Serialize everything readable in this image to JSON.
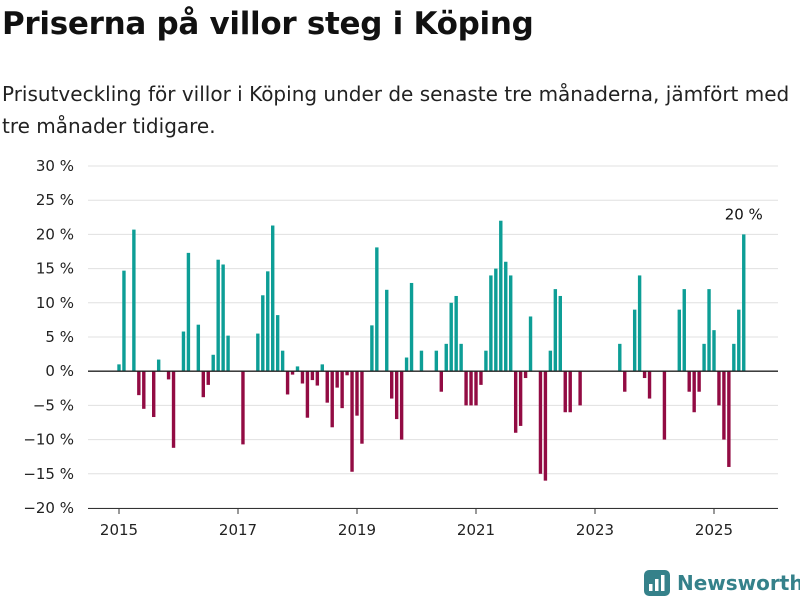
{
  "header": {
    "title": "Priserna på villor steg i Köping",
    "subtitle": "Prisutveckling för villor i Köping under de senaste tre månaderna, jämfört med tre månader tidigare."
  },
  "brand": {
    "name": "Newsworthy",
    "icon": "newsworthy-logo-icon",
    "color": "#35818a"
  },
  "colors": {
    "positive": "#0d9e96",
    "negative": "#920b43",
    "grid": "#e0e0e0",
    "zero_line": "#222222"
  },
  "chart_data": {
    "type": "bar",
    "title": "",
    "xlabel": "",
    "ylabel": "",
    "ylim": [
      -20,
      30
    ],
    "y_ticks": [
      -20,
      -15,
      -10,
      -5,
      0,
      5,
      10,
      15,
      20,
      25,
      30
    ],
    "y_tick_labels": [
      "−20 %",
      "−15 %",
      "−10 %",
      "−5 %",
      "0 %",
      "5 %",
      "10 %",
      "15 %",
      "20 %",
      "25 %",
      "30 %"
    ],
    "x_ticks": [
      2015,
      2017,
      2019,
      2021,
      2023,
      2025
    ],
    "x_tick_labels": [
      "2015",
      "2017",
      "2019",
      "2021",
      "2023",
      "2025"
    ],
    "grid": true,
    "annotation": {
      "text": "20 %",
      "month": "2025-07"
    },
    "series": [
      {
        "values": [
          [
            "2015-01",
            1
          ],
          [
            "2015-02",
            14.7
          ],
          [
            "2015-03",
            0
          ],
          [
            "2015-04",
            20.7
          ],
          [
            "2015-05",
            -3.5
          ],
          [
            "2015-06",
            -5.5
          ],
          [
            "2015-07",
            0
          ],
          [
            "2015-08",
            -6.7
          ],
          [
            "2015-09",
            1.7
          ],
          [
            "2015-10",
            0
          ],
          [
            "2015-11",
            -1.2
          ],
          [
            "2015-12",
            -11.2
          ],
          [
            "2016-01",
            0
          ],
          [
            "2016-02",
            5.8
          ],
          [
            "2016-03",
            17.3
          ],
          [
            "2016-04",
            0
          ],
          [
            "2016-05",
            6.8
          ],
          [
            "2016-06",
            -3.8
          ],
          [
            "2016-07",
            -2
          ],
          [
            "2016-08",
            2.4
          ],
          [
            "2016-09",
            16.3
          ],
          [
            "2016-10",
            15.6
          ],
          [
            "2016-11",
            5.2
          ],
          [
            "2016-12",
            0
          ],
          [
            "2017-01",
            0
          ],
          [
            "2017-02",
            -10.7
          ],
          [
            "2017-03",
            0
          ],
          [
            "2017-04",
            0
          ],
          [
            "2017-05",
            5.5
          ],
          [
            "2017-06",
            11.1
          ],
          [
            "2017-07",
            14.6
          ],
          [
            "2017-08",
            21.3
          ],
          [
            "2017-09",
            8.2
          ],
          [
            "2017-10",
            3
          ],
          [
            "2017-11",
            -3.4
          ],
          [
            "2017-12",
            -0.5
          ],
          [
            "2018-01",
            0.7
          ],
          [
            "2018-02",
            -1.8
          ],
          [
            "2018-03",
            -6.8
          ],
          [
            "2018-04",
            -1.3
          ],
          [
            "2018-05",
            -2.1
          ],
          [
            "2018-06",
            1
          ],
          [
            "2018-07",
            -4.6
          ],
          [
            "2018-08",
            -8.2
          ],
          [
            "2018-09",
            -2.4
          ],
          [
            "2018-10",
            -5.4
          ],
          [
            "2018-11",
            -0.6
          ],
          [
            "2018-12",
            -14.7
          ],
          [
            "2019-01",
            -6.5
          ],
          [
            "2019-02",
            -10.6
          ],
          [
            "2019-03",
            0
          ],
          [
            "2019-04",
            6.7
          ],
          [
            "2019-05",
            18.1
          ],
          [
            "2019-06",
            0
          ],
          [
            "2019-07",
            11.9
          ],
          [
            "2019-08",
            -4
          ],
          [
            "2019-09",
            -7
          ],
          [
            "2019-10",
            -10
          ],
          [
            "2019-11",
            2
          ],
          [
            "2019-12",
            12.9
          ],
          [
            "2020-01",
            0
          ],
          [
            "2020-02",
            3
          ],
          [
            "2020-03",
            0
          ],
          [
            "2020-04",
            0
          ],
          [
            "2020-05",
            3
          ],
          [
            "2020-06",
            -3
          ],
          [
            "2020-07",
            4
          ],
          [
            "2020-08",
            10
          ],
          [
            "2020-09",
            11
          ],
          [
            "2020-10",
            4
          ],
          [
            "2020-11",
            -5
          ],
          [
            "2020-12",
            -5
          ],
          [
            "2021-01",
            -5
          ],
          [
            "2021-02",
            -2
          ],
          [
            "2021-03",
            3
          ],
          [
            "2021-04",
            14
          ],
          [
            "2021-05",
            15
          ],
          [
            "2021-06",
            22
          ],
          [
            "2021-07",
            16
          ],
          [
            "2021-08",
            14
          ],
          [
            "2021-09",
            -9
          ],
          [
            "2021-10",
            -8
          ],
          [
            "2021-11",
            -1
          ],
          [
            "2021-12",
            8
          ],
          [
            "2022-01",
            0
          ],
          [
            "2022-02",
            -15
          ],
          [
            "2022-03",
            -16
          ],
          [
            "2022-04",
            3
          ],
          [
            "2022-05",
            12
          ],
          [
            "2022-06",
            11
          ],
          [
            "2022-07",
            -6
          ],
          [
            "2022-08",
            -6
          ],
          [
            "2022-09",
            0
          ],
          [
            "2022-10",
            -5
          ],
          [
            "2022-11",
            0
          ],
          [
            "2022-12",
            0
          ],
          [
            "2023-01",
            0
          ],
          [
            "2023-02",
            0
          ],
          [
            "2023-03",
            0
          ],
          [
            "2023-04",
            0
          ],
          [
            "2023-05",
            0
          ],
          [
            "2023-06",
            4
          ],
          [
            "2023-07",
            -3
          ],
          [
            "2023-08",
            0
          ],
          [
            "2023-09",
            9
          ],
          [
            "2023-10",
            14
          ],
          [
            "2023-11",
            -1
          ],
          [
            "2023-12",
            -4
          ],
          [
            "2024-01",
            0
          ],
          [
            "2024-02",
            0
          ],
          [
            "2024-03",
            -10
          ],
          [
            "2024-04",
            0
          ],
          [
            "2024-05",
            0
          ],
          [
            "2024-06",
            9
          ],
          [
            "2024-07",
            12
          ],
          [
            "2024-08",
            -3
          ],
          [
            "2024-09",
            -6
          ],
          [
            "2024-10",
            -3
          ],
          [
            "2024-11",
            4
          ],
          [
            "2024-12",
            12
          ],
          [
            "2025-01",
            6
          ],
          [
            "2025-02",
            -5
          ],
          [
            "2025-03",
            -10
          ],
          [
            "2025-04",
            -14
          ],
          [
            "2025-05",
            4
          ],
          [
            "2025-06",
            9
          ],
          [
            "2025-07",
            20
          ]
        ]
      }
    ]
  }
}
